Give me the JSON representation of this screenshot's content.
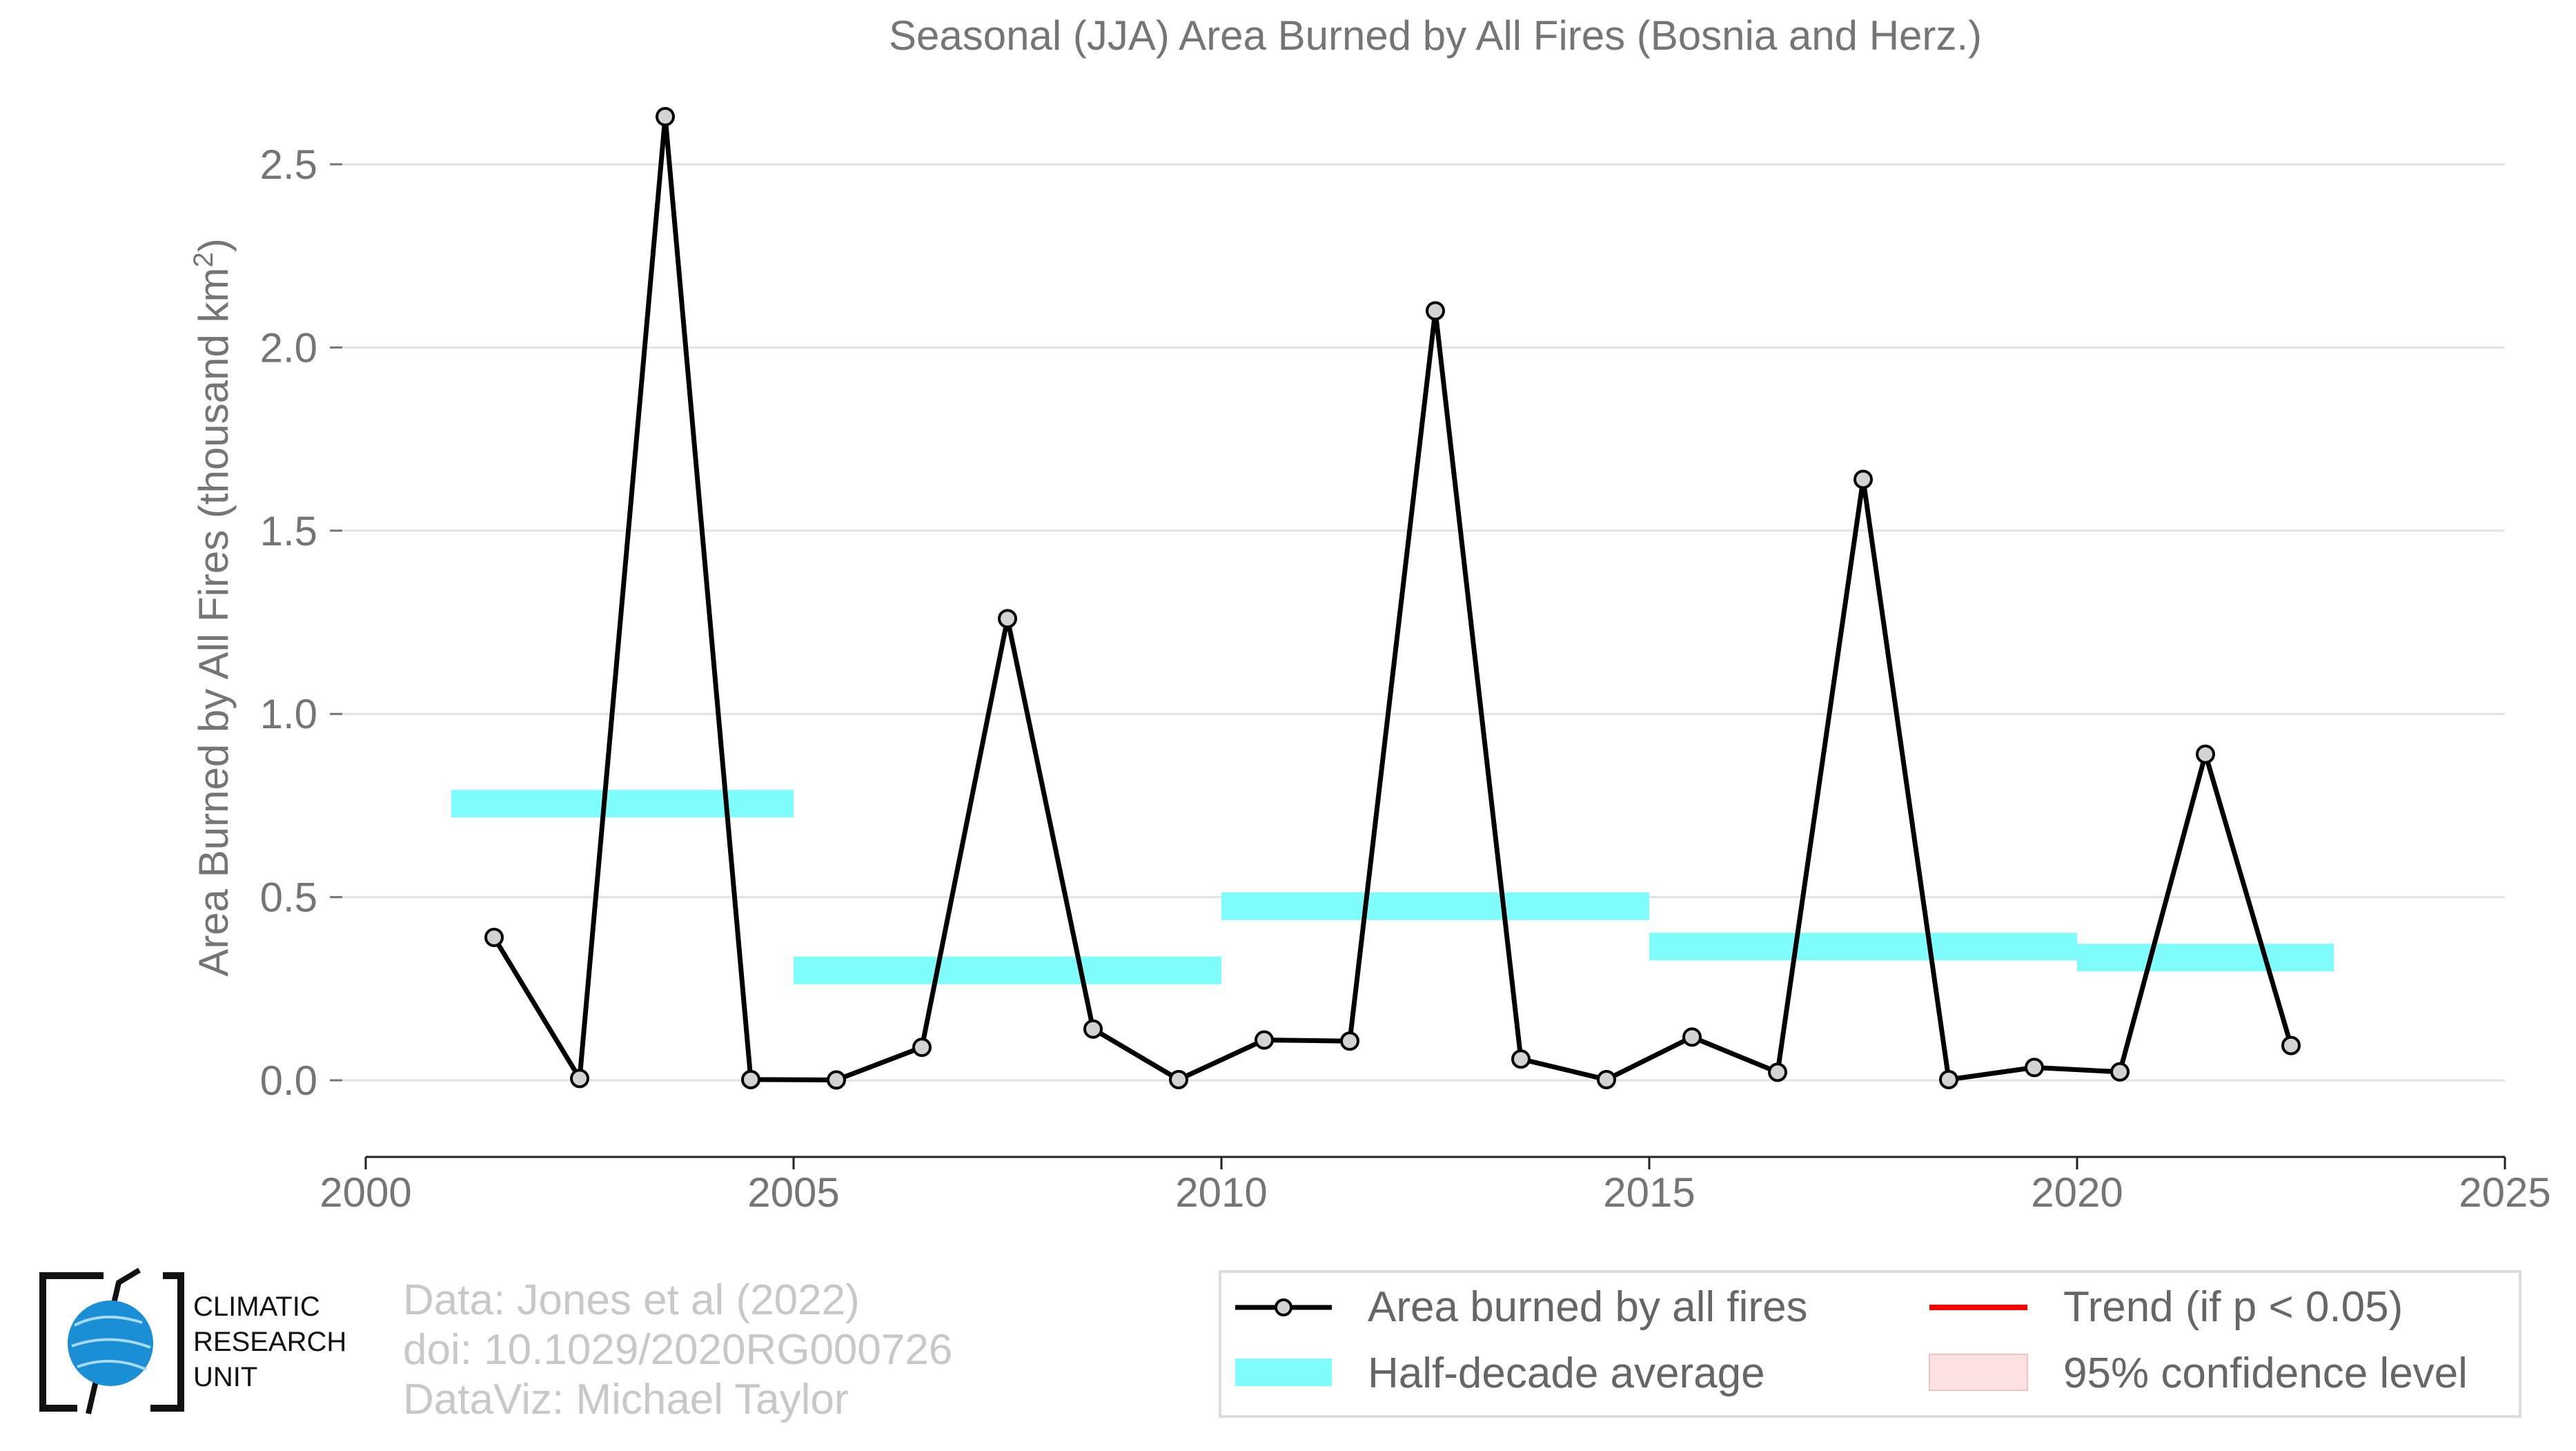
{
  "chart_data": {
    "type": "line",
    "title": "Seasonal (JJA) Area Burned by All Fires (Bosnia and Herz.)",
    "ylabel": "Area Burned by All Fires (thousand km",
    "ylabel_superscript": "2",
    "ylabel_close": ")",
    "xlabel": "",
    "xlim": [
      2000,
      2025
    ],
    "ylim": [
      0,
      2.5
    ],
    "x_ticks": [
      "2000",
      "2005",
      "2010",
      "2015",
      "2020",
      "2025"
    ],
    "y_ticks": [
      "0.0",
      "0.5",
      "1.0",
      "1.5",
      "2.0",
      "2.5"
    ],
    "grid": true,
    "series": [
      {
        "name": "Area burned by all fires",
        "type": "line",
        "color": "#000000",
        "marker_fill": "#d3d3d3",
        "x": [
          2001.5,
          2002.5,
          2003.5,
          2004.5,
          2005.5,
          2006.5,
          2007.5,
          2008.5,
          2009.5,
          2010.5,
          2011.5,
          2012.5,
          2013.5,
          2014.5,
          2015.5,
          2016.5,
          2017.5,
          2018.5,
          2019.5,
          2020.5,
          2021.5,
          2022.5
        ],
        "y": [
          0.39,
          0.005,
          2.63,
          0.002,
          0.001,
          0.09,
          1.26,
          0.14,
          0.002,
          0.11,
          0.107,
          2.1,
          0.058,
          0.002,
          0.118,
          0.022,
          1.64,
          0.002,
          0.035,
          0.023,
          0.89,
          0.095
        ]
      },
      {
        "name": "Half-decade average",
        "type": "step",
        "color": "#7ffdfd",
        "segments": [
          {
            "x0": 2001,
            "x1": 2005,
            "y": 0.755
          },
          {
            "x0": 2005,
            "x1": 2010,
            "y": 0.3
          },
          {
            "x0": 2010,
            "x1": 2015,
            "y": 0.475
          },
          {
            "x0": 2015,
            "x1": 2020,
            "y": 0.365
          },
          {
            "x0": 2020,
            "x1": 2023,
            "y": 0.335
          }
        ]
      }
    ],
    "legend": {
      "placement": "bottom-right",
      "entries": [
        {
          "label": "Area burned by all fires",
          "kind": "line-marker",
          "color": "#000000"
        },
        {
          "label": "Trend (if p < 0.05)",
          "kind": "line",
          "color": "#ff0000"
        },
        {
          "label": "Half-decade average",
          "kind": "band",
          "color": "#7ffdfd"
        },
        {
          "label": "95% confidence level",
          "kind": "patch",
          "color": "#fde0e0"
        }
      ]
    }
  },
  "credits": {
    "line1": "Data: Jones et al (2022)",
    "line2": "doi: 10.1029/2020RG000726",
    "line3": "DataViz: Michael Taylor"
  },
  "logo": {
    "line1": "CLIMATIC",
    "line2": "RESEARCH",
    "line3": "UNIT",
    "icon": "globe-icon"
  }
}
